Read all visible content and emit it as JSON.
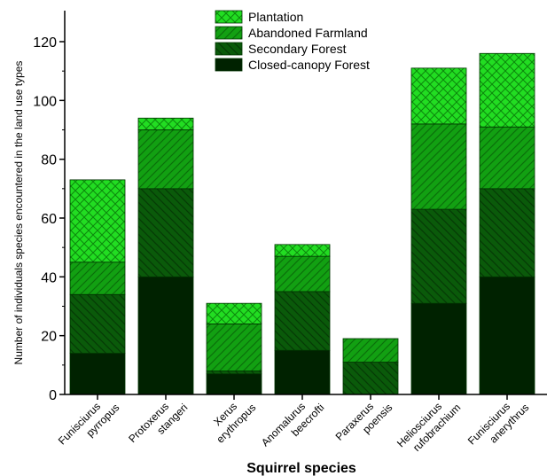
{
  "chart_data": {
    "type": "bar",
    "stacked": true,
    "title": "",
    "xlabel": "Squirrel species",
    "ylabel": "Number of individuals species encountered in the land use types",
    "ylim": [
      0,
      130
    ],
    "yticks": [
      0,
      20,
      40,
      60,
      80,
      100,
      120
    ],
    "grid": false,
    "legend_position": "top-center",
    "categories": [
      [
        "Funisciurus",
        "pyrropus"
      ],
      [
        "Protoxerus",
        "stangeri"
      ],
      [
        "Xerus",
        "erythropus"
      ],
      [
        "Anomalurus",
        "beecrofti"
      ],
      [
        "Paraxerus",
        "poensis"
      ],
      [
        "Heliosciurus",
        "rufobrachium"
      ],
      [
        "Funisciurus",
        "anerythrus"
      ]
    ],
    "series": [
      {
        "name": "Closed-canopy Forest",
        "values": [
          14,
          40,
          7,
          15,
          0,
          31,
          40
        ],
        "color": "#002200",
        "pattern": "solid"
      },
      {
        "name": "Secondary Forest",
        "values": [
          20,
          30,
          1,
          20,
          11,
          32,
          30
        ],
        "color": "#0a5a0a",
        "pattern": "diag-down"
      },
      {
        "name": "Abandoned Farmland",
        "values": [
          11,
          20,
          16,
          12,
          8,
          29,
          21
        ],
        "color": "#12a012",
        "pattern": "diag-up"
      },
      {
        "name": "Plantation",
        "values": [
          28,
          4,
          7,
          4,
          0,
          19,
          25
        ],
        "color": "#22dd22",
        "pattern": "crosshatch"
      }
    ],
    "legend_order": [
      "Plantation",
      "Abandoned Farmland",
      "Secondary Forest",
      "Closed-canopy Forest"
    ]
  }
}
